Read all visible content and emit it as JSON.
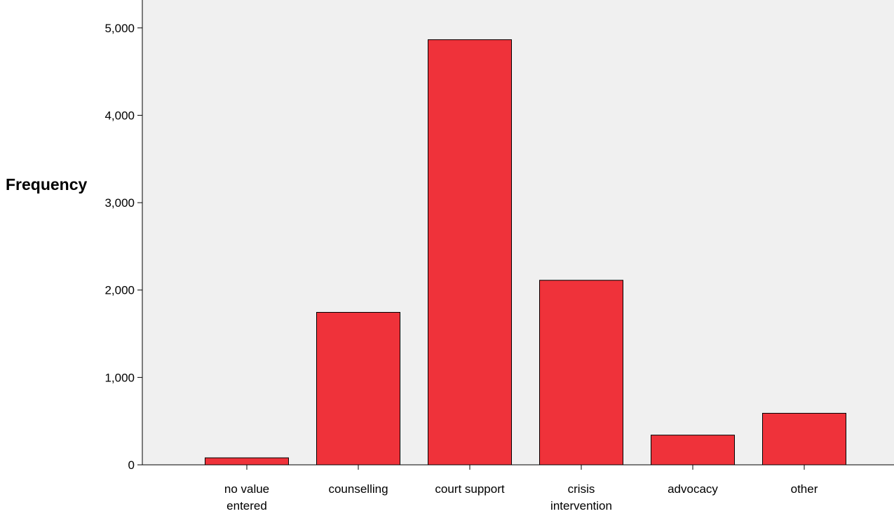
{
  "chart_data": {
    "type": "bar",
    "ylabel": "Frequency",
    "xlabel": "",
    "categories": [
      [
        "no value",
        "entered"
      ],
      [
        "counselling"
      ],
      [
        "court support"
      ],
      [
        "crisis",
        "intervention"
      ],
      [
        "advocacy"
      ],
      [
        "other"
      ]
    ],
    "values": [
      80,
      1745,
      4865,
      2112,
      340,
      590
    ],
    "ylim": [
      0,
      5200
    ],
    "yticks": [
      0,
      1000,
      2000,
      3000,
      4000,
      5000
    ],
    "ytick_labels": [
      "0",
      "1,000",
      "2,000",
      "3,000",
      "4,000",
      "5,000"
    ],
    "grid": false,
    "colors": {
      "bar_fill": "#ef323a",
      "bar_stroke": "#000000",
      "plot_background": "#f0f0f0"
    }
  }
}
